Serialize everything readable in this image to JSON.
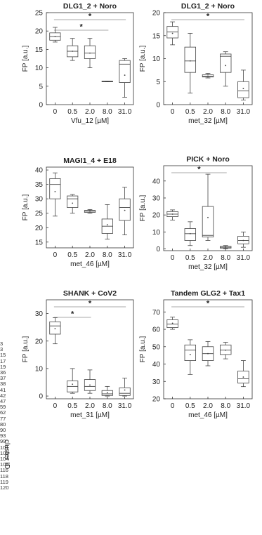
{
  "chart_data": [
    {
      "type": "box",
      "title": "DLG1_2 + Noro",
      "xlabel": "Vfu_12 [µM]",
      "ylabel": "FP [a.u.]",
      "categories": [
        "0",
        "0.5",
        "2.0",
        "8.0",
        "31.0"
      ],
      "ylim": [
        0,
        25
      ],
      "yticks": [
        0,
        5,
        10,
        15,
        20,
        25
      ],
      "boxes": [
        {
          "min": 17,
          "q1": 17.5,
          "median": 18.5,
          "q3": 19.5,
          "max": 21,
          "mean": 18.5
        },
        {
          "min": 12,
          "q1": 13,
          "median": 14.5,
          "q3": 16,
          "max": 18,
          "mean": 14.5
        },
        {
          "min": 10,
          "q1": 12.5,
          "median": 14,
          "q3": 16,
          "max": 18,
          "mean": 14
        },
        {
          "min": 6.2,
          "q1": 6.2,
          "median": 6.3,
          "q3": 6.4,
          "max": 6.4,
          "mean": 6.3
        },
        {
          "min": 2,
          "q1": 6,
          "median": 11,
          "q3": 12,
          "max": 12.5,
          "mean": 8
        }
      ],
      "significance": [
        {
          "from": 0,
          "to": 4,
          "label": "*"
        },
        {
          "from": 0,
          "to": 3,
          "label": "*"
        }
      ]
    },
    {
      "type": "box",
      "title": "DLG1_2 + Noro",
      "xlabel": "met_32 [µM]",
      "ylabel": "FP [a.u.]",
      "categories": [
        "0",
        "0.5",
        "2.0",
        "8.0",
        "31.0"
      ],
      "ylim": [
        0,
        20
      ],
      "yticks": [
        0,
        5,
        10,
        15,
        20
      ],
      "boxes": [
        {
          "min": 13,
          "q1": 14.5,
          "median": 15.8,
          "q3": 17,
          "max": 18,
          "mean": 15.5
        },
        {
          "min": 2.5,
          "q1": 7,
          "median": 9.5,
          "q3": 12.5,
          "max": 15.5,
          "mean": 9.5
        },
        {
          "min": 5.8,
          "q1": 6,
          "median": 6.2,
          "q3": 6.5,
          "max": 6.8,
          "mean": 6.2
        },
        {
          "min": 4,
          "q1": 7,
          "median": 10.5,
          "q3": 11,
          "max": 11.5,
          "mean": 8.5
        },
        {
          "min": 1,
          "q1": 1.5,
          "median": 3,
          "q3": 5,
          "max": 7.5,
          "mean": 3.5
        }
      ],
      "significance": [
        {
          "from": 0,
          "to": 4,
          "label": "*"
        }
      ]
    },
    {
      "type": "box",
      "title": "MAGI1_4 + E18",
      "xlabel": "met_46 [µM]",
      "ylabel": "FP [a.u.]",
      "categories": [
        "0",
        "0.5",
        "2.0",
        "8.0",
        "31.0"
      ],
      "ylim": [
        13,
        41
      ],
      "yticks": [
        15,
        20,
        25,
        30,
        35,
        40
      ],
      "boxes": [
        {
          "min": 24,
          "q1": 30,
          "median": 35,
          "q3": 37,
          "max": 39,
          "mean": 32.5
        },
        {
          "min": 25,
          "q1": 27,
          "median": 30,
          "q3": 31,
          "max": 31.5,
          "mean": 28.5
        },
        {
          "min": 25,
          "q1": 25.3,
          "median": 25.7,
          "q3": 26,
          "max": 26.3,
          "mean": 25.7
        },
        {
          "min": 16,
          "q1": 18,
          "median": 20.5,
          "q3": 23,
          "max": 28,
          "mean": 21
        },
        {
          "min": 17.5,
          "q1": 22.5,
          "median": 27,
          "q3": 30,
          "max": 34,
          "mean": 26
        }
      ],
      "significance": []
    },
    {
      "type": "box",
      "title": "PICK + Noro",
      "xlabel": "met_32 [µM]",
      "ylabel": "FP [a.u.]",
      "categories": [
        "0",
        "0.5",
        "2.0",
        "8.0",
        "31.0"
      ],
      "ylim": [
        -1,
        49
      ],
      "yticks": [
        0,
        10,
        20,
        30,
        40
      ],
      "boxes": [
        {
          "min": 17,
          "q1": 19,
          "median": 20.5,
          "q3": 22,
          "max": 23,
          "mean": 20.5
        },
        {
          "min": 2,
          "q1": 5,
          "median": 9,
          "q3": 12,
          "max": 16,
          "mean": 9
        },
        {
          "min": 5,
          "q1": 7,
          "median": 8,
          "q3": 25,
          "max": 44,
          "mean": 18.5
        },
        {
          "min": 0,
          "q1": 0.5,
          "median": 1,
          "q3": 1.5,
          "max": 2,
          "mean": 1
        },
        {
          "min": 1,
          "q1": 3,
          "median": 5,
          "q3": 7.5,
          "max": 10,
          "mean": 5
        }
      ],
      "significance": [
        {
          "from": 0,
          "to": 3,
          "label": "*"
        }
      ]
    },
    {
      "type": "box",
      "title": "SHANK + CoV2",
      "xlabel": "met_31 [µM]",
      "ylabel": "FP [a.u.]",
      "categories": [
        "0",
        "0.5",
        "2.0",
        "8.0",
        "31.0"
      ],
      "ylim": [
        -1,
        35
      ],
      "yticks": [
        0,
        10,
        20,
        30
      ],
      "boxes": [
        {
          "min": 19,
          "q1": 22.5,
          "median": 25.5,
          "q3": 27,
          "max": 28.5,
          "mean": 24.5
        },
        {
          "min": 1,
          "q1": 1.5,
          "median": 3.5,
          "q3": 5.5,
          "max": 10,
          "mean": 4.3
        },
        {
          "min": 1,
          "q1": 2,
          "median": 3.5,
          "q3": 6,
          "max": 9.5,
          "mean": 4
        },
        {
          "min": 0,
          "q1": 0.2,
          "median": 0.8,
          "q3": 2,
          "max": 3.5,
          "mean": 1.2
        },
        {
          "min": 0,
          "q1": 0.2,
          "median": 1,
          "q3": 3,
          "max": 6.5,
          "mean": 2.2
        }
      ],
      "significance": [
        {
          "from": 0,
          "to": 4,
          "label": "*"
        },
        {
          "from": 0,
          "to": 2,
          "label": "*"
        }
      ]
    },
    {
      "type": "box",
      "title": "Tandem GLG2 + Tax1",
      "xlabel": "met_46 [µM]",
      "ylabel": "FP [a.u.]",
      "categories": [
        "0",
        "0.5",
        "2.0",
        "8.0",
        "31.0"
      ],
      "ylim": [
        20,
        77
      ],
      "yticks": [
        20,
        30,
        40,
        50,
        60,
        70
      ],
      "boxes": [
        {
          "min": 60,
          "q1": 61,
          "median": 63,
          "q3": 65.5,
          "max": 67,
          "mean": 63.5
        },
        {
          "min": 34,
          "q1": 42,
          "median": 48,
          "q3": 51,
          "max": 54,
          "mean": 45.5
        },
        {
          "min": 39,
          "q1": 42,
          "median": 46,
          "q3": 50,
          "max": 53,
          "mean": 46
        },
        {
          "min": 43,
          "q1": 45.5,
          "median": 48,
          "q3": 51,
          "max": 52.5,
          "mean": 48
        },
        {
          "min": 27,
          "q1": 29,
          "median": 31.5,
          "q3": 36,
          "max": 42,
          "mean": 32.5
        }
      ],
      "significance": [
        {
          "from": 0,
          "to": 4,
          "label": "*"
        }
      ]
    }
  ],
  "side_labels": {
    "numbers": [
      "3",
      "3",
      "15",
      "17",
      "19",
      "36",
      "37",
      "38",
      "41",
      "42",
      "47",
      "59",
      "62",
      "77",
      "80",
      "90",
      "93",
      "99",
      "101",
      "103",
      "104",
      "105",
      "116",
      "118",
      "119",
      "120"
    ],
    "title": "cluster ID"
  }
}
